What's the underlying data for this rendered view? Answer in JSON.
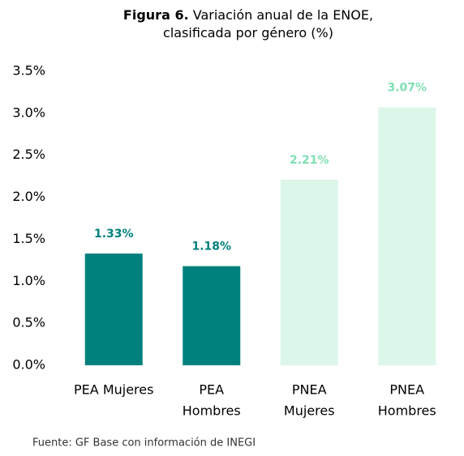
{
  "chart_data": {
    "type": "bar",
    "figure_label": "Figura 6.",
    "title": "Variación anual de la ENOE, clasificada por género (%)",
    "categories": [
      [
        "PEA Mujeres"
      ],
      [
        "PEA",
        "Hombres"
      ],
      [
        "PNEA",
        "Mujeres"
      ],
      [
        "PNEA",
        "Hombres"
      ]
    ],
    "values": [
      1.33,
      1.18,
      2.21,
      3.07
    ],
    "value_labels": [
      "1.33%",
      "1.18%",
      "2.21%",
      "3.07%"
    ],
    "colors": [
      "#00807c",
      "#00807c",
      "#dcf6ea",
      "#dcf6ea"
    ],
    "label_colors": [
      "#00807c",
      "#00807c",
      "#7fe0b3",
      "#7fe0b3"
    ],
    "ylim": [
      0,
      3.5
    ],
    "yticks": [
      {
        "value": 0,
        "label": "0.0%"
      },
      {
        "value": 0.5,
        "label": "0.5%"
      },
      {
        "value": 1,
        "label": "1.0%"
      },
      {
        "value": 1.5,
        "label": "1.5%"
      },
      {
        "value": 2,
        "label": "2.0%"
      },
      {
        "value": 2.5,
        "label": "2.5%"
      },
      {
        "value": 3,
        "label": "3.0%"
      },
      {
        "value": 3.5,
        "label": "3.5%"
      }
    ],
    "grid": false,
    "source": "Fuente: GF Base con información de INEGI"
  }
}
